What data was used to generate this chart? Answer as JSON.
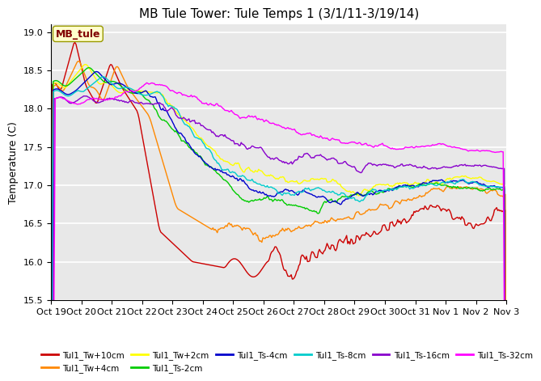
{
  "title": "MB Tule Tower: Tule Temps 1 (3/1/11-3/19/14)",
  "ylabel": "Temperature (C)",
  "ylim": [
    15.5,
    19.1
  ],
  "yticks": [
    15.5,
    16.0,
    16.5,
    17.0,
    17.5,
    18.0,
    18.5,
    19.0
  ],
  "xlim": [
    0,
    419
  ],
  "plot_bg_color": "#e8e8e8",
  "series": [
    {
      "label": "Tul1_Tw+10cm",
      "color": "#cc0000"
    },
    {
      "label": "Tul1_Tw+4cm",
      "color": "#ff8800"
    },
    {
      "label": "Tul1_Tw+2cm",
      "color": "#ffff00"
    },
    {
      "label": "Tul1_Ts-2cm",
      "color": "#00cc00"
    },
    {
      "label": "Tul1_Ts-4cm",
      "color": "#0000cc"
    },
    {
      "label": "Tul1_Ts-8cm",
      "color": "#00cccc"
    },
    {
      "label": "Tul1_Ts-16cm",
      "color": "#8800cc"
    },
    {
      "label": "Tul1_Ts-32cm",
      "color": "#ff00ff"
    }
  ],
  "xtick_labels": [
    "Oct 19",
    "Oct 20",
    "Oct 21",
    "Oct 22",
    "Oct 23",
    "Oct 24",
    "Oct 25",
    "Oct 26",
    "Oct 27",
    "Oct 28",
    "Oct 29",
    "Oct 30",
    "Oct 31",
    "Nov 1",
    "Nov 2",
    "Nov 3"
  ],
  "legend_box_text": "MB_tule",
  "title_fontsize": 11,
  "axis_label_fontsize": 9,
  "tick_fontsize": 8,
  "legend_fontsize": 7.5
}
